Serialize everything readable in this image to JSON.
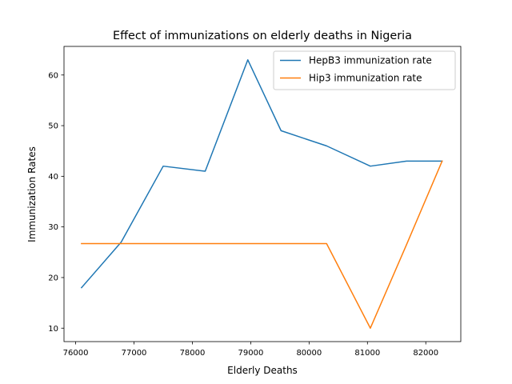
{
  "chart_data": {
    "type": "line",
    "title": "Effect of immunizations on elderly deaths in Nigeria",
    "xlabel": "Elderly Deaths",
    "ylabel": "Immunization Rates",
    "xlim": [
      75800,
      82600
    ],
    "ylim": [
      7.35,
      65.65
    ],
    "xticks": [
      76000,
      77000,
      78000,
      79000,
      80000,
      81000,
      82000
    ],
    "xtick_labels": [
      "76000",
      "77000",
      "78000",
      "79000",
      "80000",
      "81000",
      "82000"
    ],
    "yticks": [
      10,
      20,
      30,
      40,
      50,
      60
    ],
    "ytick_labels": [
      "10",
      "20",
      "30",
      "40",
      "50",
      "60"
    ],
    "grid": false,
    "legend_position": "top-right",
    "series": [
      {
        "name": "HepB3 immunization rate",
        "color": "#1f77b4",
        "x": [
          76100,
          76780,
          77500,
          78220,
          78950,
          79520,
          80300,
          81050,
          81670,
          82280
        ],
        "y": [
          18,
          27,
          42,
          41,
          63,
          49,
          46,
          42,
          43,
          43
        ]
      },
      {
        "name": "Hip3 immunization rate",
        "color": "#ff7f0e",
        "x": [
          76100,
          76780,
          77500,
          78220,
          78950,
          79520,
          80300,
          81050,
          81670,
          82280
        ],
        "y": [
          26.7,
          26.7,
          26.7,
          26.7,
          26.7,
          26.7,
          26.7,
          10,
          26.5,
          43
        ]
      }
    ]
  }
}
